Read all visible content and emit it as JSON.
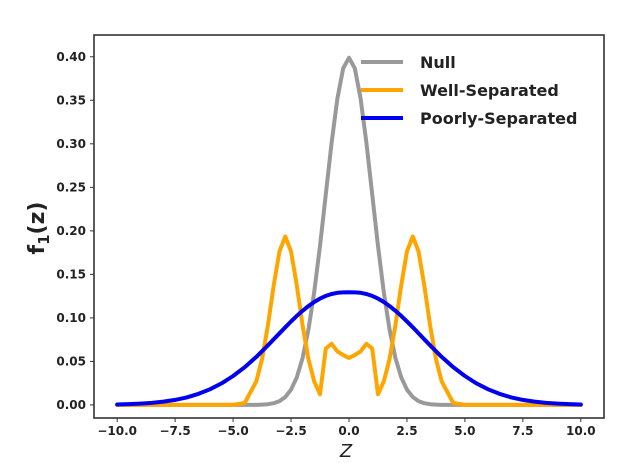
{
  "chart_data": {
    "type": "line",
    "title": "",
    "xlabel": "Z",
    "ylabel": "f",
    "ylabel_subscript": "1",
    "ylabel_suffix": "(z)",
    "xlim": [
      -11,
      11
    ],
    "ylim": [
      -0.015,
      0.425
    ],
    "x_ticks": [
      -10.0,
      -7.5,
      -5.0,
      -2.5,
      0.0,
      2.5,
      5.0,
      7.5,
      10.0
    ],
    "x_tick_labels": [
      "−10.0",
      "−7.5",
      "−5.0",
      "−2.5",
      "0.0",
      "2.5",
      "5.0",
      "7.5",
      "10.0"
    ],
    "y_ticks": [
      0.0,
      0.05,
      0.1,
      0.15,
      0.2,
      0.25,
      0.3,
      0.35,
      0.4
    ],
    "y_tick_labels": [
      "0.00",
      "0.05",
      "0.10",
      "0.15",
      "0.20",
      "0.25",
      "0.30",
      "0.35",
      "0.40"
    ],
    "grid": false,
    "legend": "top-right",
    "x": [
      -10,
      -9.5,
      -9,
      -8.5,
      -8,
      -7.5,
      -7,
      -6.5,
      -6,
      -5.5,
      -5,
      -4.5,
      -4,
      -3.75,
      -3.5,
      -3.25,
      -3,
      -2.75,
      -2.5,
      -2.25,
      -2,
      -1.75,
      -1.5,
      -1.25,
      -1,
      -0.75,
      -0.5,
      -0.25,
      0,
      0.25,
      0.5,
      0.75,
      1,
      1.25,
      1.5,
      1.75,
      2,
      2.25,
      2.5,
      2.75,
      3,
      3.25,
      3.5,
      3.75,
      4,
      4.5,
      5,
      5.5,
      6,
      6.5,
      7,
      7.5,
      8,
      8.5,
      9,
      9.5,
      10
    ],
    "series": [
      {
        "name": "Null",
        "color": "#999999",
        "values": [
          0,
          0,
          0,
          0,
          0,
          0,
          0,
          0,
          0,
          0,
          0,
          0,
          0.0001,
          0.0004,
          0.0009,
          0.002,
          0.0044,
          0.0091,
          0.0175,
          0.0317,
          0.054,
          0.0863,
          0.1295,
          0.1826,
          0.242,
          0.3011,
          0.3521,
          0.3867,
          0.3989,
          0.3867,
          0.3521,
          0.3011,
          0.242,
          0.1826,
          0.1295,
          0.0863,
          0.054,
          0.0317,
          0.0175,
          0.0091,
          0.0044,
          0.002,
          0.0009,
          0.0004,
          0.0001,
          0,
          0,
          0,
          0,
          0,
          0,
          0,
          0,
          0,
          0,
          0,
          0
        ]
      },
      {
        "name": "Well-Separated",
        "color": "#ffa500",
        "values": [
          0,
          0,
          0,
          0,
          0,
          0,
          0,
          0,
          0,
          0,
          0,
          0.0022,
          0.027,
          0.0529,
          0.0913,
          0.1373,
          0.1765,
          0.1935,
          0.1765,
          0.1373,
          0.0913,
          0.0529,
          0.027,
          0.0122,
          0.0648,
          0.0702,
          0.0615,
          0.0573,
          0.054,
          0.0573,
          0.0615,
          0.0702,
          0.0648,
          0.0122,
          0.027,
          0.0529,
          0.0913,
          0.1373,
          0.1765,
          0.1935,
          0.1765,
          0.1373,
          0.0913,
          0.0529,
          0.027,
          0.0022,
          0,
          0,
          0,
          0,
          0,
          0,
          0,
          0,
          0,
          0,
          0
        ]
      },
      {
        "name": "Poorly-Separated",
        "color": "#0000ee",
        "values": [
          0.0005,
          0.001,
          0.0015,
          0.0024,
          0.0038,
          0.0058,
          0.0087,
          0.0127,
          0.018,
          0.0248,
          0.0332,
          0.0434,
          0.0552,
          0.0617,
          0.0685,
          0.0754,
          0.0823,
          0.0892,
          0.0959,
          0.1023,
          0.1082,
          0.1136,
          0.1183,
          0.1222,
          0.1253,
          0.1275,
          0.1288,
          0.1293,
          0.1294,
          0.1293,
          0.1288,
          0.1275,
          0.1253,
          0.1222,
          0.1183,
          0.1136,
          0.1082,
          0.1023,
          0.0959,
          0.0892,
          0.0823,
          0.0754,
          0.0685,
          0.0617,
          0.0552,
          0.0434,
          0.0332,
          0.0248,
          0.018,
          0.0127,
          0.0087,
          0.0058,
          0.0038,
          0.0024,
          0.0015,
          0.001,
          0.0005
        ]
      }
    ]
  }
}
